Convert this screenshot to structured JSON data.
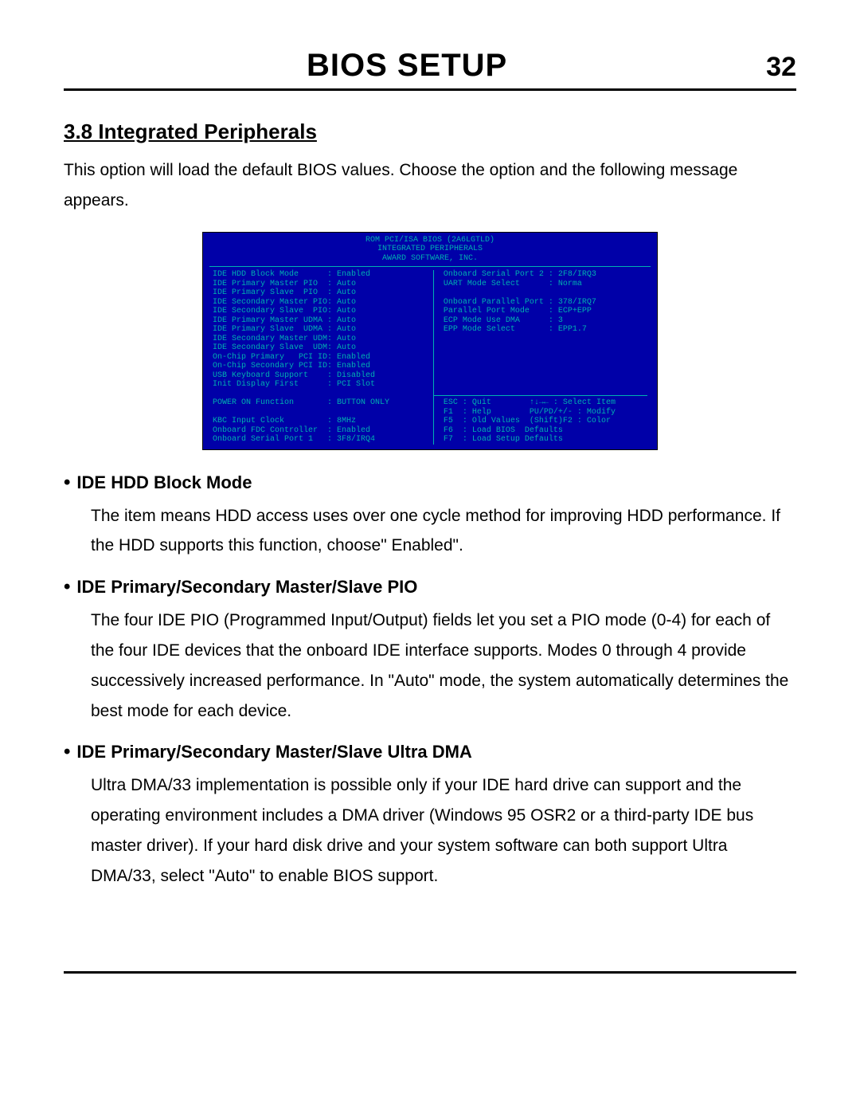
{
  "header": {
    "title": "BIOS SETUP",
    "page": "32"
  },
  "section": {
    "number_title": "3.8 Integrated Peripherals",
    "intro": "This option will load the default BIOS values. Choose the option and the following message appears."
  },
  "bios": {
    "header_line1": "ROM PCI/ISA BIOS (2A6LGTLD)",
    "header_line2": "INTEGRATED PERIPHERALS",
    "header_line3": "AWARD SOFTWARE, INC.",
    "left_rows": [
      {
        "label": "IDE HDD Block Mode",
        "value": "Enabled"
      },
      {
        "label": "IDE Primary Master PIO",
        "value": "Auto"
      },
      {
        "label": "IDE Primary Slave  PIO",
        "value": "Auto"
      },
      {
        "label": "IDE Secondary Master PIO",
        "value": "Auto"
      },
      {
        "label": "IDE Secondary Slave  PIO",
        "value": "Auto"
      },
      {
        "label": "IDE Primary Master UDMA",
        "value": "Auto"
      },
      {
        "label": "IDE Primary Slave  UDMA",
        "value": "Auto"
      },
      {
        "label": "IDE Secondary Master UDMA",
        "value": "Auto"
      },
      {
        "label": "IDE Secondary Slave  UDMA",
        "value": "Auto"
      },
      {
        "label": "On-Chip Primary   PCI IDE",
        "value": "Enabled"
      },
      {
        "label": "On-Chip Secondary PCI IDE",
        "value": "Enabled"
      },
      {
        "label": "USB Keyboard Support",
        "value": "Disabled"
      },
      {
        "label": "Init Display First",
        "value": "PCI Slot"
      },
      {
        "label": "",
        "value": ""
      },
      {
        "label": "POWER ON Function",
        "value": "BUTTON ONLY"
      },
      {
        "label": "",
        "value": ""
      },
      {
        "label": "KBC Input Clock",
        "value": "8MHz"
      },
      {
        "label": "Onboard FDC Controller",
        "value": "Enabled"
      },
      {
        "label": "Onboard Serial Port 1",
        "value": "3F8/IRQ4"
      }
    ],
    "right_rows": [
      {
        "label": "Onboard Serial Port 2",
        "value": "2F8/IRQ3"
      },
      {
        "label": "UART Mode Select",
        "value": "Norma"
      },
      {
        "label": "",
        "value": ""
      },
      {
        "label": "Onboard Parallel Port",
        "value": "378/IRQ7"
      },
      {
        "label": "Parallel Port Mode",
        "value": "ECP+EPP"
      },
      {
        "label": "ECP Mode Use DMA",
        "value": "3"
      },
      {
        "label": "EPP Mode Select",
        "value": "EPP1.7"
      }
    ],
    "help": [
      "ESC : Quit        ↑↓→← : Select Item",
      "F1  : Help        PU/PD/+/- : Modify",
      "F5  : Old Values  (Shift)F2 : Color",
      "F6  : Load BIOS  Defaults",
      "F7  : Load Setup Defaults"
    ],
    "colors": {
      "background": "#0000a8",
      "text": "#00b0b0",
      "highlight": "#e8e800"
    }
  },
  "bullets": [
    {
      "title": "IDE HDD Block Mode",
      "text": "The item means HDD access uses over one cycle method for improving HDD performance. If the HDD supports this function, choose\" Enabled\"."
    },
    {
      "title": "IDE Primary/Secondary Master/Slave PIO",
      "text": "The four IDE PIO (Programmed Input/Output) fields let you set a PIO mode (0-4) for each of the four IDE devices that the onboard IDE interface supports. Modes 0 through 4 provide successively increased performance. In \"Auto\" mode, the system automatically determines the best mode for each device."
    },
    {
      "title": "IDE Primary/Secondary Master/Slave Ultra DMA",
      "text": "Ultra DMA/33 implementation is possible only if your IDE hard drive can support and the operating environment includes a DMA driver (Windows 95 OSR2 or a third-party IDE bus master driver). If your hard disk drive and your system software can both support Ultra DMA/33, select \"Auto\" to enable BIOS support."
    }
  ]
}
